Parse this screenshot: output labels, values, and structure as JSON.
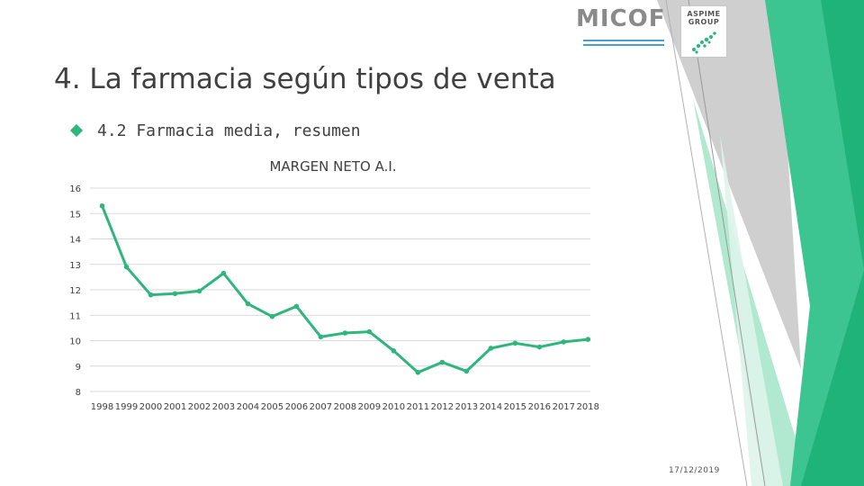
{
  "slide": {
    "title": "4. La farmacia según tipos de venta",
    "bullet": "4.2 Farmacia media, resumen",
    "date": "17/12/2019"
  },
  "logos": {
    "micof": "MICOF",
    "aspime": "ASPIME",
    "aspime_sub": "GROUP"
  },
  "colors": {
    "series": "#2eb67d",
    "grid": "#d9d9d9",
    "text": "#404040",
    "deco_dark": "#1fb37a",
    "deco_mid": "#3cc491",
    "deco_light": "#a9e6cb",
    "deco_gray": "#bfbfbf"
  },
  "chart_data": {
    "type": "line",
    "title": "MARGEN NETO A.I.",
    "xlabel": "",
    "ylabel": "",
    "ylim": [
      8,
      16
    ],
    "yticks": [
      8,
      9,
      10,
      11,
      12,
      13,
      14,
      15,
      16
    ],
    "categories": [
      "1998",
      "1999",
      "2000",
      "2001",
      "2002",
      "2003",
      "2004",
      "2005",
      "2006",
      "2007",
      "2008",
      "2009",
      "2010",
      "2011",
      "2012",
      "2013",
      "2014",
      "2015",
      "2016",
      "2017",
      "2018"
    ],
    "series": [
      {
        "name": "",
        "values": [
          15.3,
          12.9,
          11.8,
          11.85,
          11.95,
          12.65,
          11.45,
          10.95,
          11.35,
          10.15,
          10.3,
          10.35,
          9.6,
          8.75,
          9.15,
          8.8,
          9.7,
          9.9,
          9.75,
          9.95,
          10.05
        ]
      }
    ],
    "grid": true,
    "legend": "none"
  }
}
